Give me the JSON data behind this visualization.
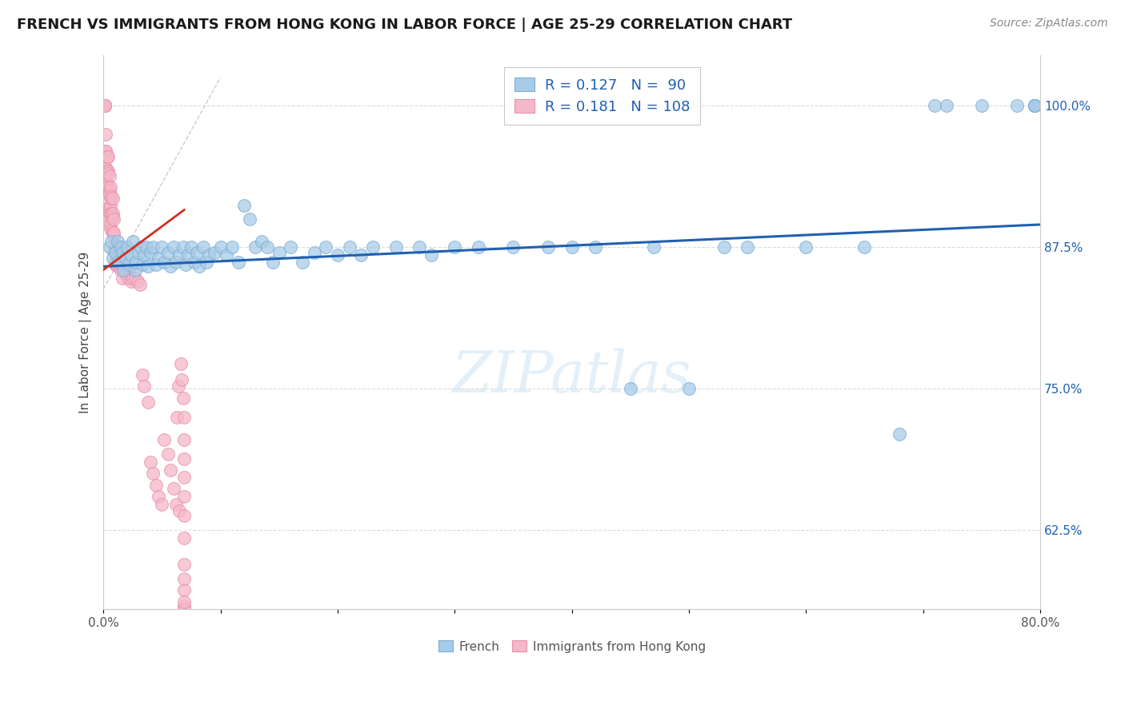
{
  "title": "FRENCH VS IMMIGRANTS FROM HONG KONG IN LABOR FORCE | AGE 25-29 CORRELATION CHART",
  "source": "Source: ZipAtlas.com",
  "ylabel": "In Labor Force | Age 25-29",
  "xlim": [
    0.0,
    0.8
  ],
  "ylim": [
    0.555,
    1.045
  ],
  "xticks": [
    0.0,
    0.1,
    0.2,
    0.3,
    0.4,
    0.5,
    0.6,
    0.7,
    0.8
  ],
  "xticklabels": [
    "0.0%",
    "",
    "",
    "",
    "",
    "",
    "",
    "",
    "80.0%"
  ],
  "ytick_positions": [
    0.625,
    0.75,
    0.875,
    1.0
  ],
  "ytick_labels": [
    "62.5%",
    "75.0%",
    "87.5%",
    "100.0%"
  ],
  "blue_color": "#a8cce8",
  "blue_edge_color": "#7badd4",
  "pink_color": "#f5b8c8",
  "pink_edge_color": "#e890aa",
  "blue_line_color": "#2060b0",
  "pink_line_color": "#d03020",
  "diag_color": "#ddaaaa",
  "legend_blue_R": 0.127,
  "legend_blue_N": 90,
  "legend_pink_R": 0.181,
  "legend_pink_N": 108,
  "watermark": "ZIPatlas",
  "title_fontsize": 13,
  "axis_label_fontsize": 11,
  "tick_fontsize": 11,
  "legend_fontsize": 13,
  "blue_scatter_x": [
    0.005,
    0.007,
    0.008,
    0.01,
    0.012,
    0.013,
    0.015,
    0.016,
    0.017,
    0.019,
    0.02,
    0.022,
    0.024,
    0.025,
    0.027,
    0.028,
    0.03,
    0.032,
    0.033,
    0.035,
    0.037,
    0.038,
    0.04,
    0.042,
    0.045,
    0.047,
    0.05,
    0.052,
    0.055,
    0.057,
    0.06,
    0.062,
    0.065,
    0.068,
    0.07,
    0.072,
    0.075,
    0.078,
    0.08,
    0.082,
    0.085,
    0.088,
    0.09,
    0.095,
    0.1,
    0.105,
    0.11,
    0.115,
    0.12,
    0.125,
    0.13,
    0.135,
    0.14,
    0.145,
    0.15,
    0.16,
    0.17,
    0.18,
    0.19,
    0.2,
    0.21,
    0.22,
    0.23,
    0.25,
    0.27,
    0.28,
    0.3,
    0.32,
    0.35,
    0.38,
    0.4,
    0.42,
    0.45,
    0.47,
    0.5,
    0.53,
    0.55,
    0.6,
    0.65,
    0.68,
    0.71,
    0.72,
    0.75,
    0.78,
    0.795,
    0.795,
    0.795,
    0.795,
    0.795,
    0.795
  ],
  "blue_scatter_y": [
    0.875,
    0.88,
    0.865,
    0.87,
    0.88,
    0.862,
    0.875,
    0.87,
    0.855,
    0.865,
    0.875,
    0.86,
    0.868,
    0.88,
    0.855,
    0.862,
    0.87,
    0.875,
    0.86,
    0.868,
    0.875,
    0.858,
    0.87,
    0.875,
    0.86,
    0.865,
    0.875,
    0.862,
    0.87,
    0.858,
    0.875,
    0.862,
    0.868,
    0.875,
    0.86,
    0.868,
    0.875,
    0.862,
    0.87,
    0.858,
    0.875,
    0.862,
    0.868,
    0.87,
    0.875,
    0.868,
    0.875,
    0.862,
    0.912,
    0.9,
    0.875,
    0.88,
    0.875,
    0.862,
    0.87,
    0.875,
    0.862,
    0.87,
    0.875,
    0.868,
    0.875,
    0.868,
    0.875,
    0.875,
    0.875,
    0.868,
    0.875,
    0.875,
    0.875,
    0.875,
    0.875,
    0.875,
    0.75,
    0.875,
    0.75,
    0.875,
    0.875,
    0.875,
    0.875,
    0.71,
    1.0,
    1.0,
    1.0,
    1.0,
    1.0,
    1.0,
    1.0,
    1.0,
    1.0,
    1.0
  ],
  "pink_scatter_x": [
    0.001,
    0.001,
    0.001,
    0.001,
    0.001,
    0.001,
    0.002,
    0.002,
    0.002,
    0.002,
    0.002,
    0.002,
    0.003,
    0.003,
    0.003,
    0.003,
    0.003,
    0.004,
    0.004,
    0.004,
    0.004,
    0.004,
    0.004,
    0.005,
    0.005,
    0.005,
    0.005,
    0.005,
    0.006,
    0.006,
    0.006,
    0.006,
    0.006,
    0.007,
    0.007,
    0.007,
    0.007,
    0.008,
    0.008,
    0.008,
    0.008,
    0.009,
    0.009,
    0.009,
    0.009,
    0.01,
    0.01,
    0.01,
    0.01,
    0.01,
    0.011,
    0.011,
    0.011,
    0.012,
    0.012,
    0.012,
    0.013,
    0.013,
    0.014,
    0.014,
    0.015,
    0.015,
    0.016,
    0.016,
    0.017,
    0.018,
    0.019,
    0.02,
    0.021,
    0.022,
    0.023,
    0.024,
    0.025,
    0.027,
    0.029,
    0.031,
    0.033,
    0.035,
    0.038,
    0.04,
    0.042,
    0.045,
    0.047,
    0.05,
    0.052,
    0.055,
    0.057,
    0.06,
    0.062,
    0.063,
    0.064,
    0.065,
    0.066,
    0.067,
    0.068,
    0.069,
    0.069,
    0.069,
    0.069,
    0.069,
    0.069,
    0.069,
    0.069,
    0.069,
    0.069,
    0.069,
    0.069,
    0.069
  ],
  "pink_scatter_y": [
    1.0,
    1.0,
    1.0,
    1.0,
    1.0,
    1.0,
    0.975,
    0.96,
    0.945,
    0.935,
    0.96,
    0.945,
    0.955,
    0.942,
    0.93,
    0.955,
    0.93,
    0.955,
    0.942,
    0.928,
    0.91,
    0.895,
    0.94,
    0.925,
    0.91,
    0.938,
    0.922,
    0.905,
    0.928,
    0.912,
    0.895,
    0.918,
    0.902,
    0.92,
    0.905,
    0.89,
    0.905,
    0.918,
    0.902,
    0.888,
    0.905,
    0.9,
    0.885,
    0.872,
    0.888,
    0.875,
    0.86,
    0.875,
    0.862,
    0.875,
    0.862,
    0.875,
    0.86,
    0.872,
    0.858,
    0.875,
    0.86,
    0.872,
    0.865,
    0.875,
    0.862,
    0.855,
    0.862,
    0.848,
    0.858,
    0.855,
    0.852,
    0.855,
    0.848,
    0.855,
    0.848,
    0.845,
    0.848,
    0.848,
    0.845,
    0.842,
    0.762,
    0.752,
    0.738,
    0.685,
    0.675,
    0.665,
    0.655,
    0.648,
    0.705,
    0.692,
    0.678,
    0.662,
    0.648,
    0.725,
    0.752,
    0.642,
    0.772,
    0.758,
    0.742,
    0.725,
    0.705,
    0.688,
    0.672,
    0.655,
    0.638,
    0.618,
    0.595,
    0.572,
    0.558,
    0.555,
    0.582,
    0.562
  ]
}
